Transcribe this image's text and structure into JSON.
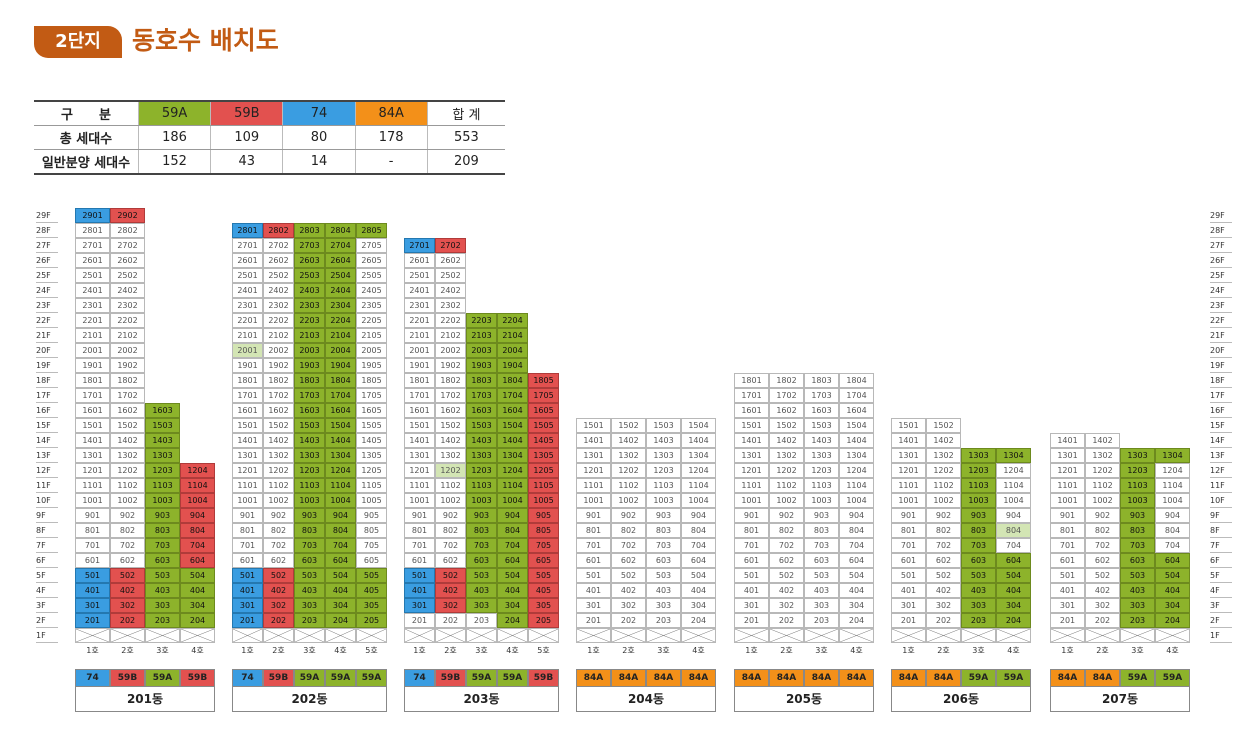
{
  "header": {
    "badge": "2단지",
    "title": "동호수 배치도"
  },
  "summary": {
    "rows": [
      [
        "구　　분",
        "59A",
        "59B",
        "74",
        "84A",
        "합 계"
      ],
      [
        "총 세대수",
        "186",
        "109",
        "80",
        "178",
        "553"
      ],
      [
        "일반분양 세대수",
        "152",
        "43",
        "14",
        "-",
        "209"
      ]
    ],
    "colors": [
      "#ffffff",
      "#8db32b",
      "#e2514f",
      "#3a9de1",
      "#f39019",
      "#ffffff"
    ]
  },
  "floors": [
    "29F",
    "28F",
    "27F",
    "26F",
    "25F",
    "24F",
    "23F",
    "22F",
    "21F",
    "20F",
    "19F",
    "18F",
    "17F",
    "16F",
    "15F",
    "14F",
    "13F",
    "12F",
    "11F",
    "10F",
    "9F",
    "8F",
    "7F",
    "6F",
    "5F",
    "4F",
    "3F",
    "2F",
    "1F"
  ],
  "legend": {
    "g": "#8db32b",
    "r": "#e2514f",
    "b": "#3a9de1",
    "o": "#f39019",
    "l": "#d3e5b4"
  },
  "buildings": [
    {
      "name": "201동",
      "units": [
        "1호",
        "2호",
        "3호",
        "4호"
      ],
      "heights": [
        29,
        29,
        16,
        12
      ],
      "types": [
        "74",
        "59B",
        "59A",
        "59B"
      ],
      "colors": {
        "29": "br",
        "5": "brgg",
        "4": "brgg",
        "3": "brgg",
        "2": "brgg",
        "16": "wwg",
        "15": "wwg",
        "14": "wwg",
        "13": "wwg",
        "12": "wwgr",
        "11": "wwgr",
        "10": "wwgr",
        "9": "wwgr",
        "8": "wwgr",
        "7": "wwgr",
        "6": "wwgr"
      }
    },
    {
      "name": "202동",
      "units": [
        "1호",
        "2호",
        "3호",
        "4호",
        "5호"
      ],
      "heights": [
        28,
        28,
        28,
        28,
        28
      ],
      "types": [
        "74",
        "59B",
        "59A",
        "59A",
        "59A"
      ],
      "colors": {
        "28": "brggg",
        "5": "brggg",
        "4": "brggg",
        "3": "brggg",
        "2": "brggg",
        "20": "lwggw",
        "default": "wwggw"
      }
    },
    {
      "name": "203동",
      "units": [
        "1호",
        "2호",
        "3호",
        "4호",
        "5호"
      ],
      "heights": [
        27,
        27,
        22,
        22,
        18
      ],
      "types": [
        "74",
        "59B",
        "59A",
        "59A",
        "59B"
      ],
      "colors": {
        "27": "br",
        "5": "brggr",
        "4": "brggr",
        "3": "brggr",
        "2": "wwwgr",
        "12": "wlggr",
        "default": "wwggr"
      }
    },
    {
      "name": "204동",
      "units": [
        "1호",
        "2호",
        "3호",
        "4호"
      ],
      "heights": [
        15,
        15,
        15,
        15
      ],
      "types": [
        "84A",
        "84A",
        "84A",
        "84A"
      ],
      "colors": {
        "default": "wwww"
      }
    },
    {
      "name": "205동",
      "units": [
        "1호",
        "2호",
        "3호",
        "4호"
      ],
      "heights": [
        18,
        18,
        18,
        18
      ],
      "types": [
        "84A",
        "84A",
        "84A",
        "84A"
      ],
      "colors": {
        "default": "wwww"
      }
    },
    {
      "name": "206동",
      "units": [
        "1호",
        "2호",
        "3호",
        "4호"
      ],
      "heights": [
        15,
        15,
        13,
        13
      ],
      "types": [
        "84A",
        "84A",
        "59A",
        "59A"
      ],
      "colors": {
        "13": "wwgg",
        "12": "wwgw",
        "11": "wwgw",
        "10": "wwgw",
        "9": "wwgw",
        "8": "wwgl",
        "7": "wwgw",
        "6": "wwgg",
        "5": "wwgg",
        "4": "wwgg",
        "3": "wwgg",
        "2": "wwgg",
        "default": "wwww"
      }
    },
    {
      "name": "207동",
      "units": [
        "1호",
        "2호",
        "3호",
        "4호"
      ],
      "heights": [
        14,
        14,
        13,
        13
      ],
      "types": [
        "84A",
        "84A",
        "59A",
        "59A"
      ],
      "colors": {
        "13": "wwgg",
        "12": "wwgw",
        "11": "wwgw",
        "10": "wwgw",
        "9": "wwgw",
        "8": "wwgw",
        "7": "wwgw",
        "6": "wwgg",
        "5": "wwgg",
        "4": "wwgg",
        "3": "wwgg",
        "2": "wwgg",
        "default": "wwww"
      }
    }
  ]
}
